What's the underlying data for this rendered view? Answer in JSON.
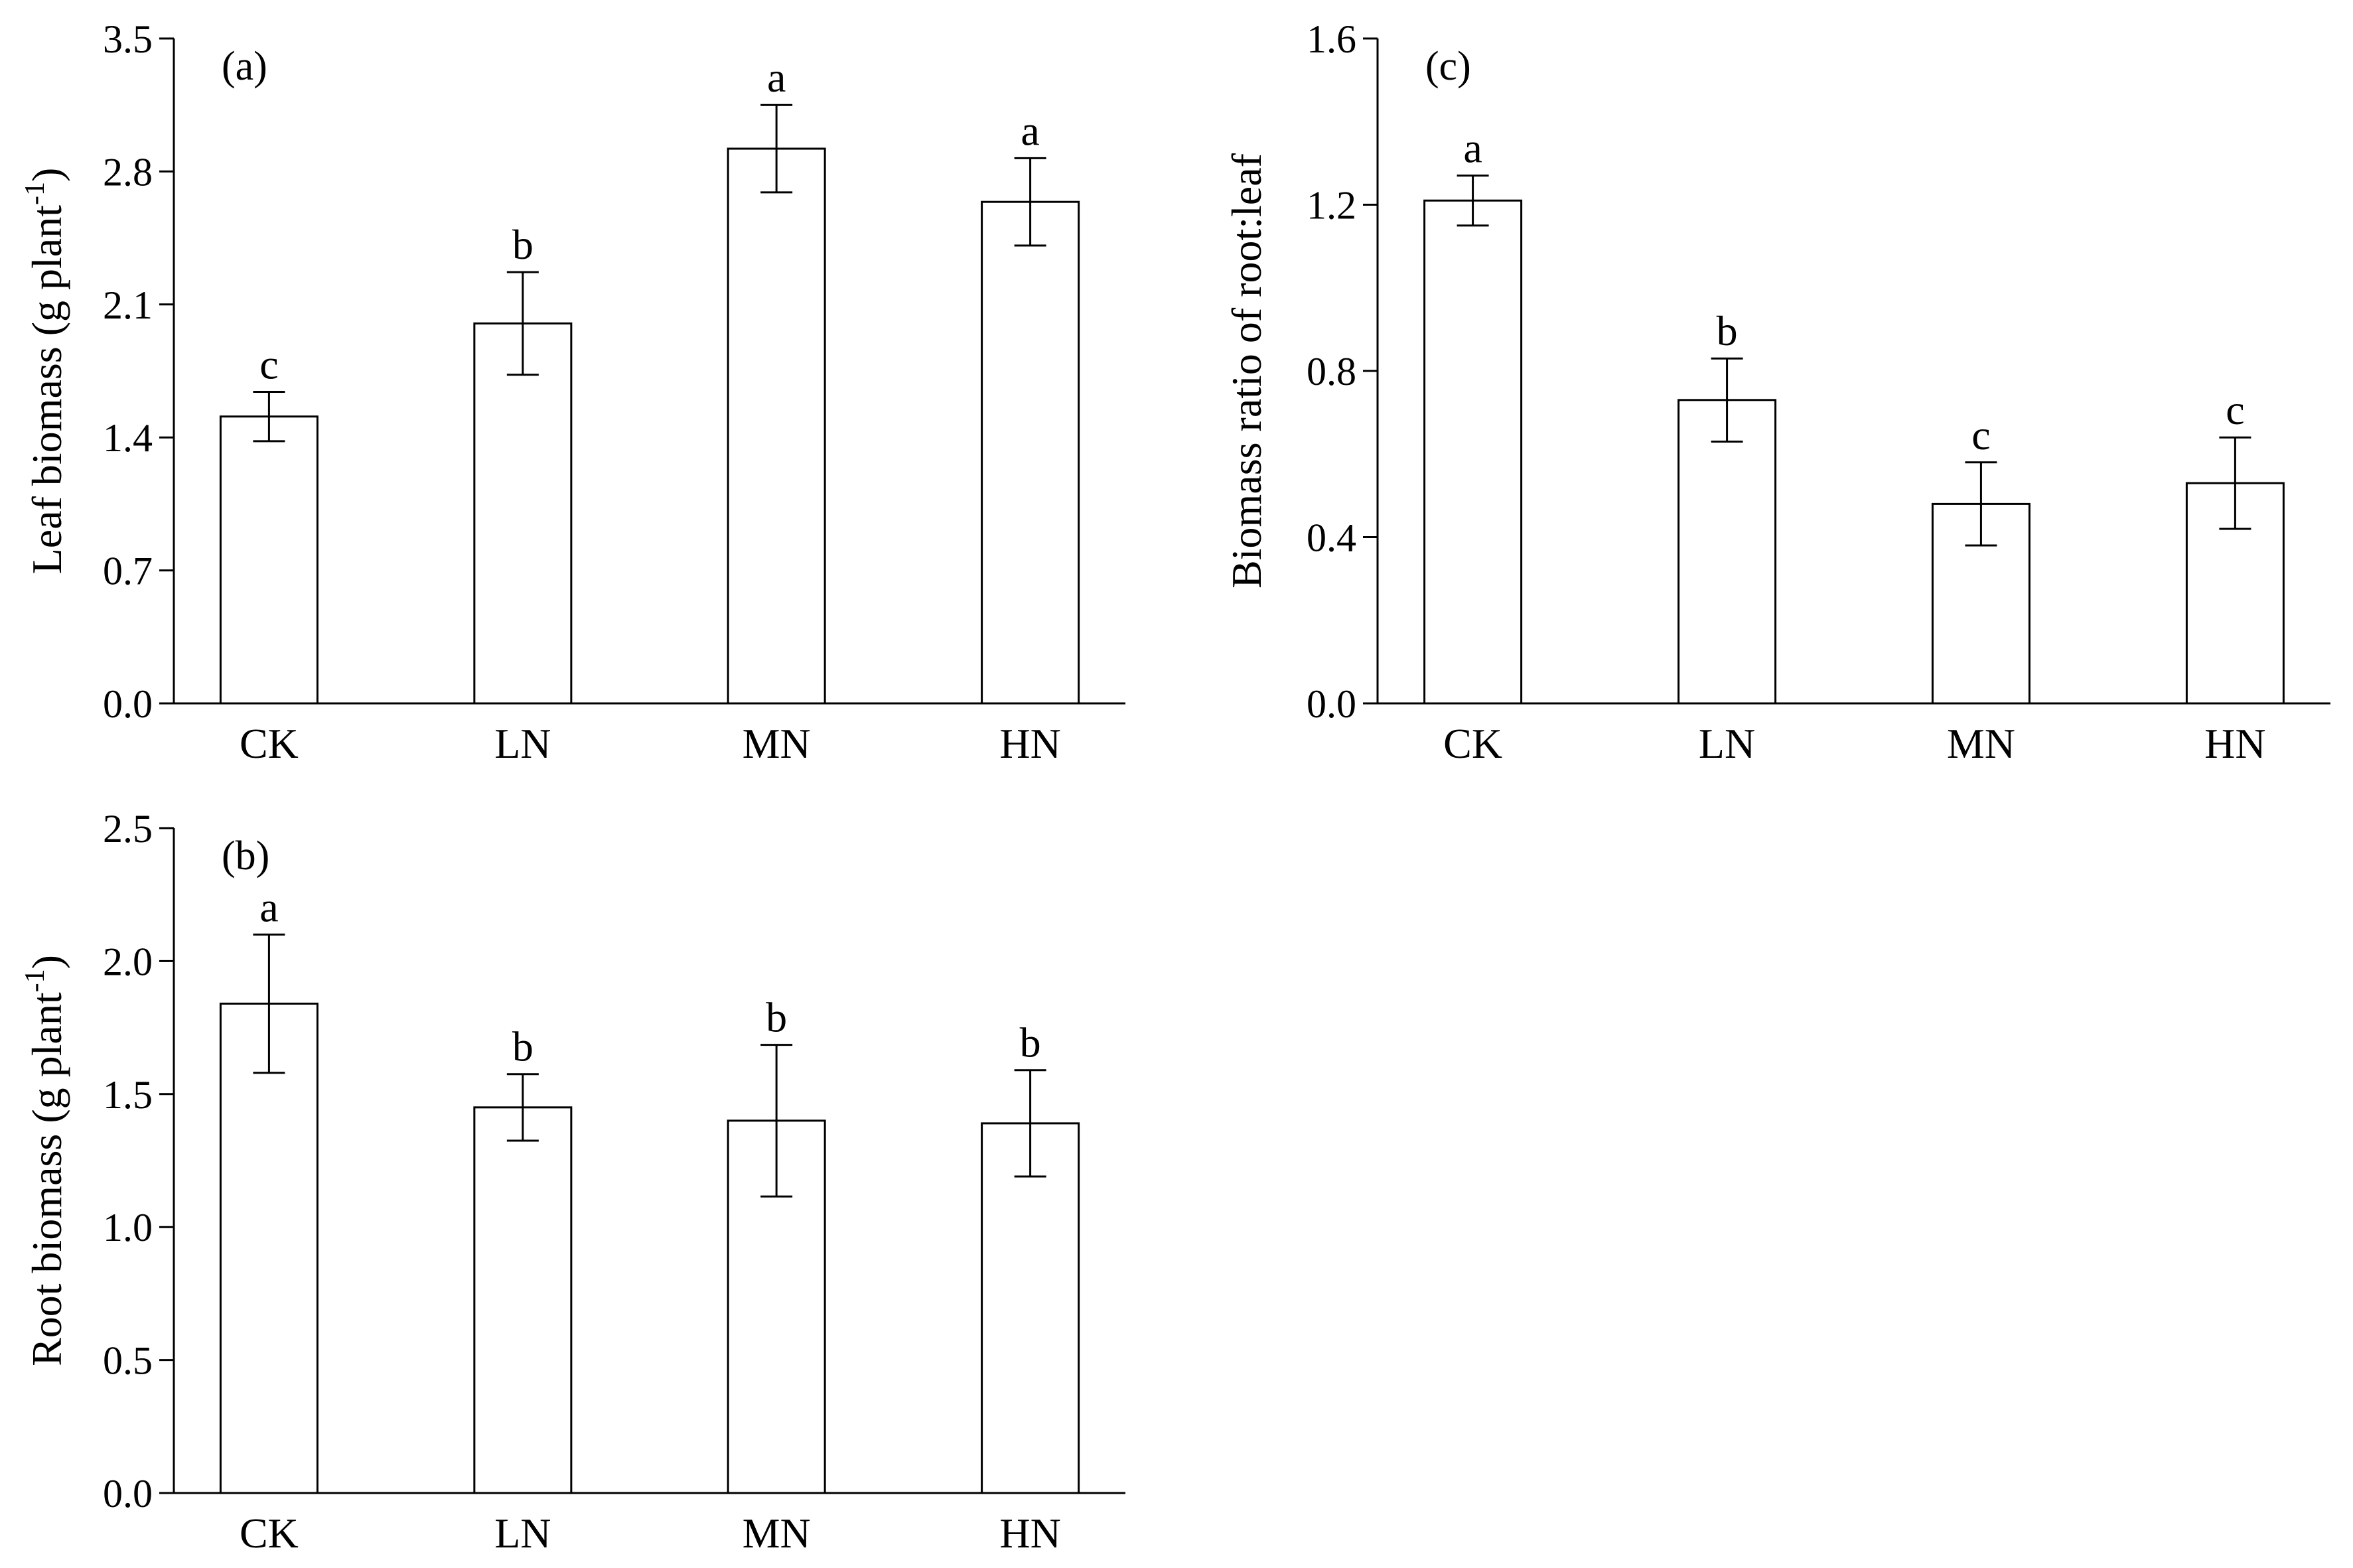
{
  "chart_data": [
    {
      "panel_label": "(a)",
      "type": "bar",
      "ylabel_main": "Leaf biomass (g plant",
      "ylabel_sup": "-1",
      "ylabel_close": ")",
      "xlabel": "",
      "categories": [
        "CK",
        "LN",
        "MN",
        "HN"
      ],
      "values": [
        1.51,
        2.0,
        2.92,
        2.64
      ],
      "errors": [
        0.13,
        0.27,
        0.23,
        0.23
      ],
      "letters": [
        "c",
        "b",
        "a",
        "a"
      ],
      "ylim": [
        0,
        3.5
      ],
      "yticks": [
        "0.0",
        "0.7",
        "1.4",
        "2.1",
        "2.8",
        "3.5"
      ],
      "grid": false,
      "bar_fill": "#ffffff",
      "line_color": "#000000"
    },
    {
      "panel_label": "(b)",
      "type": "bar",
      "ylabel_main": "Root biomass (g plant",
      "ylabel_sup": "-1",
      "ylabel_close": ")",
      "xlabel": "",
      "categories": [
        "CK",
        "LN",
        "MN",
        "HN"
      ],
      "values": [
        1.84,
        1.45,
        1.4,
        1.39
      ],
      "errors": [
        0.26,
        0.125,
        0.285,
        0.2
      ],
      "letters": [
        "a",
        "b",
        "b",
        "b"
      ],
      "ylim": [
        0,
        2.5
      ],
      "yticks": [
        "0.0",
        "0.5",
        "1.0",
        "1.5",
        "2.0",
        "2.5"
      ],
      "grid": false,
      "bar_fill": "#ffffff",
      "line_color": "#000000"
    },
    {
      "panel_label": "(c)",
      "type": "bar",
      "ylabel_main": "Biomass ratio of root:leaf",
      "ylabel_sup": "",
      "ylabel_close": "",
      "xlabel": "",
      "categories": [
        "CK",
        "LN",
        "MN",
        "HN"
      ],
      "values": [
        1.21,
        0.73,
        0.48,
        0.53
      ],
      "errors": [
        0.06,
        0.1,
        0.1,
        0.11
      ],
      "letters": [
        "a",
        "b",
        "c",
        "c"
      ],
      "ylim": [
        0,
        1.6
      ],
      "yticks": [
        "0.0",
        "0.4",
        "0.8",
        "1.2",
        "1.6"
      ],
      "grid": false,
      "bar_fill": "#ffffff",
      "line_color": "#000000"
    }
  ]
}
